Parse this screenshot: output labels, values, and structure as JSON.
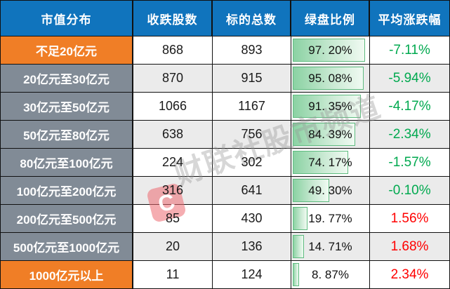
{
  "table": {
    "headers": [
      "市值分布",
      "收跌股数",
      "标的总数",
      "绿盘比例",
      "平均涨跌幅"
    ],
    "rows": [
      {
        "label": "不足20亿元",
        "declined": "868",
        "total": "893",
        "green_ratio_text": "97. 20%",
        "green_ratio_pct": 97.2,
        "avg_change": "-7.11%",
        "change_color": "#00A94F"
      },
      {
        "label": "20亿元至30亿元",
        "declined": "870",
        "total": "915",
        "green_ratio_text": "95. 08%",
        "green_ratio_pct": 95.08,
        "avg_change": "-5.94%",
        "change_color": "#00A94F"
      },
      {
        "label": "30亿元至50亿元",
        "declined": "1066",
        "total": "1167",
        "green_ratio_text": "91. 35%",
        "green_ratio_pct": 91.35,
        "avg_change": "-4.17%",
        "change_color": "#00A94F"
      },
      {
        "label": "50亿元至80亿元",
        "declined": "638",
        "total": "756",
        "green_ratio_text": "84. 39%",
        "green_ratio_pct": 84.39,
        "avg_change": "-2.34%",
        "change_color": "#00A94F"
      },
      {
        "label": "80亿元至100亿元",
        "declined": "224",
        "total": "302",
        "green_ratio_text": "74. 17%",
        "green_ratio_pct": 74.17,
        "avg_change": "-1.57%",
        "change_color": "#00A94F"
      },
      {
        "label": "100亿元至200亿元",
        "declined": "316",
        "total": "641",
        "green_ratio_text": "49. 30%",
        "green_ratio_pct": 49.3,
        "avg_change": "-0.10%",
        "change_color": "#00A94F"
      },
      {
        "label": "200亿元至500亿元",
        "declined": "85",
        "total": "430",
        "green_ratio_text": "19. 77%",
        "green_ratio_pct": 19.77,
        "avg_change": "1.56%",
        "change_color": "#FF0000"
      },
      {
        "label": "500亿元至1000亿元",
        "declined": "20",
        "total": "136",
        "green_ratio_text": "14. 71%",
        "green_ratio_pct": 14.71,
        "avg_change": "1.68%",
        "change_color": "#FF0000"
      },
      {
        "label": "1000亿元以上",
        "declined": "11",
        "total": "124",
        "green_ratio_text": "8. 87%",
        "green_ratio_pct": 8.87,
        "avg_change": "2.34%",
        "change_color": "#FF0000"
      }
    ]
  },
  "watermark": {
    "logo_letter": "C",
    "text": "财联社股市频道"
  },
  "colors": {
    "header_bg": "#1074BD",
    "label_bg": "#818B96",
    "highlight_bg": "#F07E26",
    "alt_row_bg": "#EBEBEB",
    "bar_border": "#5FBC80",
    "bar_fill_start": "#8BD2A3",
    "bar_fill_end": "#F0FAF2",
    "negative_change": "#00A94F",
    "positive_change": "#FF0000"
  },
  "chart_data": {
    "type": "table",
    "title": "市值分布涨跌统计",
    "columns": [
      "市值分布",
      "收跌股数",
      "标的总数",
      "绿盘比例",
      "平均涨跌幅"
    ],
    "rows": [
      [
        "不足20亿元",
        868,
        893,
        97.2,
        -7.11
      ],
      [
        "20亿元至30亿元",
        870,
        915,
        95.08,
        -5.94
      ],
      [
        "30亿元至50亿元",
        1066,
        1167,
        91.35,
        -4.17
      ],
      [
        "50亿元至80亿元",
        638,
        756,
        84.39,
        -2.34
      ],
      [
        "80亿元至100亿元",
        224,
        302,
        74.17,
        -1.57
      ],
      [
        "100亿元至200亿元",
        316,
        641,
        49.3,
        -0.1
      ],
      [
        "200亿元至500亿元",
        85,
        430,
        19.77,
        1.56
      ],
      [
        "500亿元至1000亿元",
        20,
        136,
        14.71,
        1.68
      ],
      [
        "1000亿元以上",
        11,
        124,
        8.87,
        2.34
      ]
    ],
    "layout_hints": {
      "green_ratio_rendered_as": "horizontal green gradient data bars scaled 0-100%",
      "avg_change_color_rule": "negative values green, positive values red",
      "highlighted_label_rows": [
        0,
        8
      ]
    }
  }
}
